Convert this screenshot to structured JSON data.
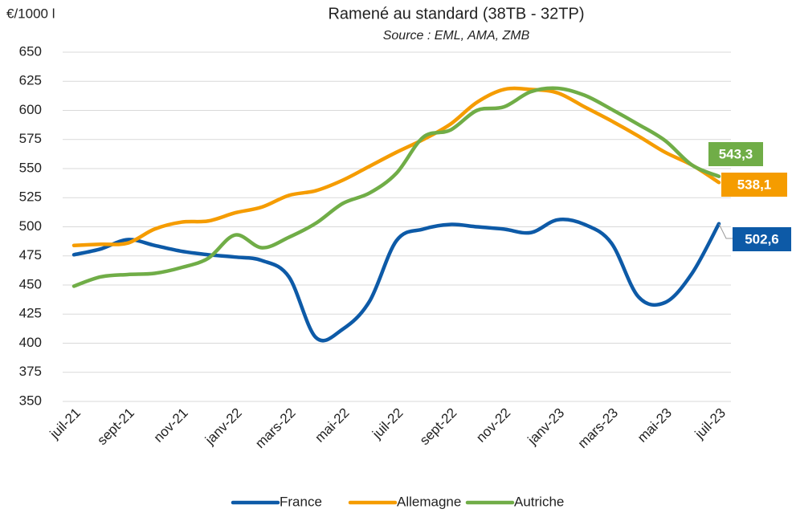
{
  "chart_data": {
    "type": "line",
    "title": "Ramené au standard (38TB - 32TP)",
    "subtitle": "Source : EML, AMA, ZMB",
    "y_axis_label": "€/1000 l",
    "categories": [
      "juil-21",
      null,
      "sept-21",
      null,
      "nov-21",
      null,
      "janv-22",
      null,
      "mars-22",
      null,
      "mai-22",
      null,
      "juil-22",
      null,
      "sept-22",
      null,
      "nov-22",
      null,
      "janv-23",
      null,
      "mars-23",
      null,
      "mai-23",
      null,
      "juil-23"
    ],
    "series": [
      {
        "name": "France",
        "color": "#0d5aa7",
        "values": [
          476,
          481,
          489,
          484,
          479,
          476,
          474,
          471,
          457,
          405,
          412,
          436,
          488,
          498,
          502,
          500,
          498,
          495,
          506,
          502,
          486,
          440,
          435,
          460,
          502.6
        ],
        "value_labels": [
          null,
          null,
          null,
          null,
          null,
          null,
          null,
          null,
          null,
          null,
          null,
          null,
          null,
          null,
          null,
          null,
          null,
          null,
          null,
          null,
          null,
          null,
          null,
          null,
          "502,6"
        ]
      },
      {
        "name": "Allemagne",
        "color": "#f59c00",
        "values": [
          484,
          485,
          486,
          498,
          504,
          505,
          512,
          517,
          527,
          531,
          540,
          552,
          564,
          575,
          588,
          607,
          618,
          618,
          615,
          603,
          591,
          578,
          564,
          553,
          538.1
        ],
        "value_labels": [
          null,
          null,
          null,
          null,
          null,
          null,
          null,
          null,
          null,
          null,
          null,
          null,
          null,
          null,
          null,
          null,
          null,
          null,
          null,
          null,
          null,
          null,
          null,
          null,
          "538,1"
        ]
      },
      {
        "name": "Autriche",
        "color": "#70ad47",
        "values": [
          449,
          457,
          459,
          460,
          465,
          473,
          493,
          482,
          491,
          503,
          520,
          529,
          546,
          577,
          583,
          600,
          603,
          616,
          619,
          613,
          601,
          588,
          574,
          553,
          543.3
        ],
        "value_labels": [
          null,
          null,
          null,
          null,
          null,
          null,
          null,
          null,
          null,
          null,
          null,
          null,
          null,
          null,
          null,
          null,
          null,
          null,
          null,
          null,
          null,
          null,
          null,
          null,
          "543,3"
        ]
      }
    ],
    "ylim": [
      350,
      650
    ],
    "yticks": [
      350,
      375,
      400,
      425,
      450,
      475,
      500,
      525,
      550,
      575,
      600,
      625,
      650
    ],
    "grid": true,
    "legend": "bottom"
  }
}
